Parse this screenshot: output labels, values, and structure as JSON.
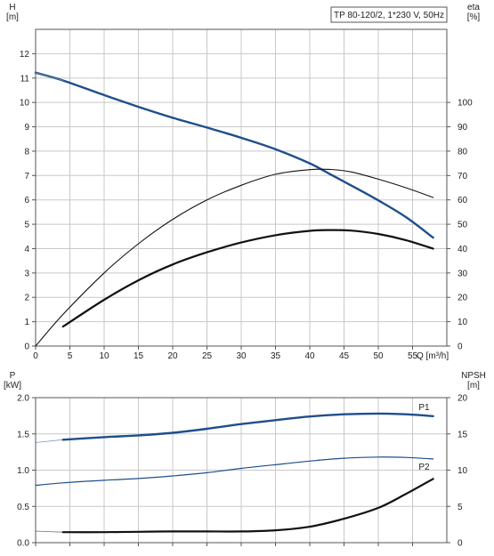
{
  "chart_data": [
    {
      "type": "line",
      "title": "TP 80-120/2, 1*230 V, 50Hz",
      "xlabel": "Q [m³/h]",
      "ylabel_left": "H\n[m]",
      "ylabel_right": "eta\n[%]",
      "xlim": [
        0,
        60
      ],
      "ylim_left": [
        0,
        13
      ],
      "ylim_right": [
        0,
        130
      ],
      "xticks": [
        "0",
        "5",
        "10",
        "15",
        "20",
        "25",
        "30",
        "35",
        "40",
        "45",
        "50",
        "55"
      ],
      "yticks_left": [
        "0",
        "1",
        "2",
        "3",
        "4",
        "5",
        "6",
        "7",
        "8",
        "9",
        "10",
        "11",
        "12"
      ],
      "yticks_right": [
        "0",
        "10",
        "20",
        "30",
        "40",
        "50",
        "60",
        "70",
        "80",
        "90",
        "100"
      ],
      "grid": true,
      "series": [
        {
          "axis": "left",
          "color": "#1f4e8c",
          "width": 2.4,
          "x": [
            0,
            4,
            10,
            15,
            20,
            25,
            30,
            35,
            40,
            43,
            46,
            50,
            54,
            58
          ],
          "y": [
            11.22,
            10.9,
            10.3,
            9.82,
            9.37,
            8.97,
            8.55,
            8.08,
            7.5,
            7.05,
            6.6,
            5.98,
            5.3,
            4.45
          ]
        },
        {
          "axis": "left",
          "color": "#b0b0b0",
          "width": 1,
          "dashed": true,
          "x": [
            0,
            4
          ],
          "y": [
            11.22,
            10.9
          ]
        },
        {
          "axis": "right",
          "color": "#111111",
          "width": 1.1,
          "x": [
            0,
            4,
            10,
            15,
            20,
            25,
            30,
            35,
            40,
            43,
            46,
            50,
            54,
            58
          ],
          "y": [
            0,
            13,
            30,
            42,
            52,
            60,
            66,
            70.5,
            72.4,
            72.5,
            71.5,
            68.5,
            65,
            61
          ]
        },
        {
          "axis": "right",
          "color": "#111111",
          "width": 2.2,
          "x": [
            4,
            10,
            15,
            20,
            25,
            30,
            35,
            40,
            43,
            46,
            50,
            54,
            58
          ],
          "y": [
            8,
            19,
            27,
            33.5,
            38.5,
            42.5,
            45.5,
            47.3,
            47.6,
            47.4,
            46,
            43.5,
            40
          ]
        }
      ]
    },
    {
      "type": "line",
      "xlabel": "",
      "ylabel_left": "P\n[kW]",
      "ylabel_right": "NPSH\n[m]",
      "xlim": [
        0,
        60
      ],
      "ylim_left": [
        0,
        2.0
      ],
      "ylim_right": [
        0,
        20
      ],
      "yticks_left": [
        "0.0",
        "0.5",
        "1.0",
        "1.5",
        "2.0"
      ],
      "yticks_right": [
        "0",
        "5",
        "10",
        "15",
        "20"
      ],
      "grid": true,
      "series": [
        {
          "name": "P1",
          "axis": "left",
          "color": "#1f4e8c",
          "width": 2.4,
          "x": [
            4,
            10,
            15,
            20,
            25,
            30,
            35,
            40,
            45,
            50,
            54,
            58
          ],
          "y": [
            1.42,
            1.455,
            1.48,
            1.515,
            1.57,
            1.635,
            1.69,
            1.74,
            1.77,
            1.78,
            1.77,
            1.745
          ]
        },
        {
          "axis": "left",
          "color": "#1f4e8c",
          "width": 1,
          "dashed": true,
          "x": [
            0,
            4
          ],
          "y": [
            1.38,
            1.42
          ]
        },
        {
          "name": "P2",
          "axis": "left",
          "color": "#1f4e8c",
          "width": 1.2,
          "x": [
            0,
            4,
            10,
            15,
            20,
            25,
            30,
            35,
            40,
            45,
            50,
            54,
            58
          ],
          "y": [
            0.79,
            0.825,
            0.86,
            0.885,
            0.92,
            0.965,
            1.025,
            1.075,
            1.125,
            1.165,
            1.18,
            1.175,
            1.155
          ]
        },
        {
          "axis": "right",
          "color": "#111111",
          "width": 2.2,
          "x": [
            4,
            10,
            15,
            20,
            25,
            30,
            35,
            40,
            45,
            50,
            54,
            58
          ],
          "y": [
            1.45,
            1.45,
            1.5,
            1.55,
            1.55,
            1.55,
            1.7,
            2.2,
            3.3,
            4.8,
            6.7,
            8.8
          ]
        },
        {
          "axis": "right",
          "color": "#111111",
          "width": 1,
          "dashed": true,
          "x": [
            0,
            4
          ],
          "y": [
            1.6,
            1.45
          ]
        }
      ],
      "labels": [
        {
          "text": "P1",
          "series": "P1"
        },
        {
          "text": "P2",
          "series": "P2"
        }
      ]
    }
  ]
}
